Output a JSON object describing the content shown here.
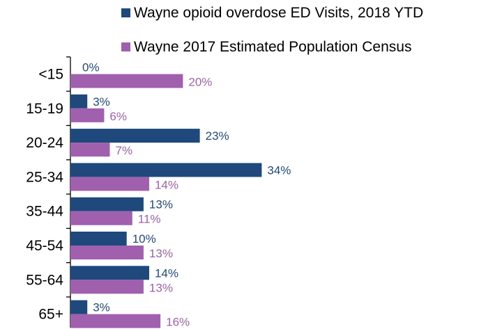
{
  "chart_data": {
    "type": "bar",
    "orientation": "horizontal",
    "categories": [
      "<15",
      "15-19",
      "20-24",
      "25-34",
      "35-44",
      "45-54",
      "55-64",
      "65+"
    ],
    "series": [
      {
        "name": "Wayne opioid overdose ED Visits, 2018 YTD",
        "values": [
          0,
          3,
          23,
          34,
          13,
          10,
          14,
          3
        ],
        "labels": [
          "0%",
          "3%",
          "23%",
          "34%",
          "13%",
          "10%",
          "14%",
          "3%"
        ],
        "color": "#1F497D"
      },
      {
        "name": "Wayne 2017 Estimated Population Census",
        "values": [
          20,
          6,
          7,
          14,
          11,
          13,
          13,
          16
        ],
        "labels": [
          "20%",
          "6%",
          "7%",
          "14%",
          "11%",
          "13%",
          "13%",
          "16%"
        ],
        "color": "#A160AE"
      }
    ],
    "legend_position": "top-right",
    "grid": false,
    "xlim": [
      0,
      40
    ]
  }
}
